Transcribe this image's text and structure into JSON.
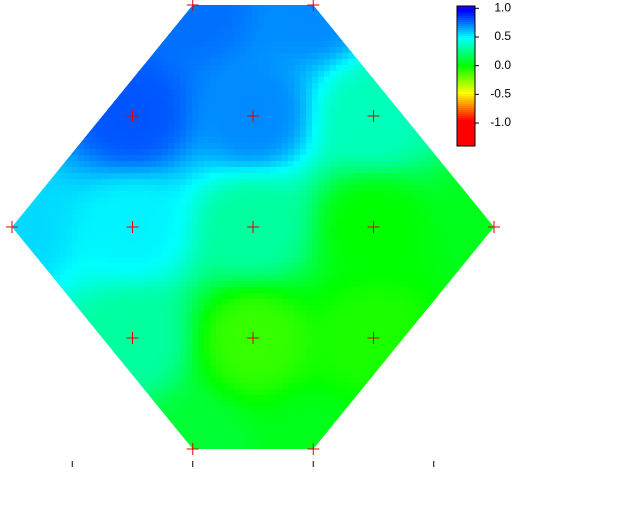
{
  "chart_data": {
    "type": "contour",
    "x": [
      2,
      3,
      1.5,
      2.5,
      3.5,
      0.5,
      1.5,
      2.5,
      3.5,
      4.5,
      1.5,
      2.5,
      3.5,
      2,
      3
    ],
    "y": [
      4,
      4,
      3,
      3,
      3,
      2,
      2,
      2,
      2,
      2,
      1,
      1,
      1,
      0,
      0
    ],
    "z": [
      0.75,
      0.7,
      0.8,
      0.7,
      0.35,
      0.55,
      0.5,
      0.3,
      0.0,
      0.05,
      0.3,
      -0.1,
      -0.05,
      0.1,
      0.05
    ],
    "xlim": [
      0.5,
      4.5
    ],
    "ylim": [
      0,
      4
    ],
    "xticks": [
      1,
      2,
      3,
      4
    ],
    "zlim": [
      -1.4,
      1.04
    ],
    "zticks": [
      {
        "value": 1,
        "label": "1.0"
      },
      0.5,
      {
        "value": 0,
        "label": "0.0"
      },
      -0.5,
      {
        "value": -1,
        "label": "-1.0"
      }
    ],
    "marker_color": "#e00000"
  }
}
